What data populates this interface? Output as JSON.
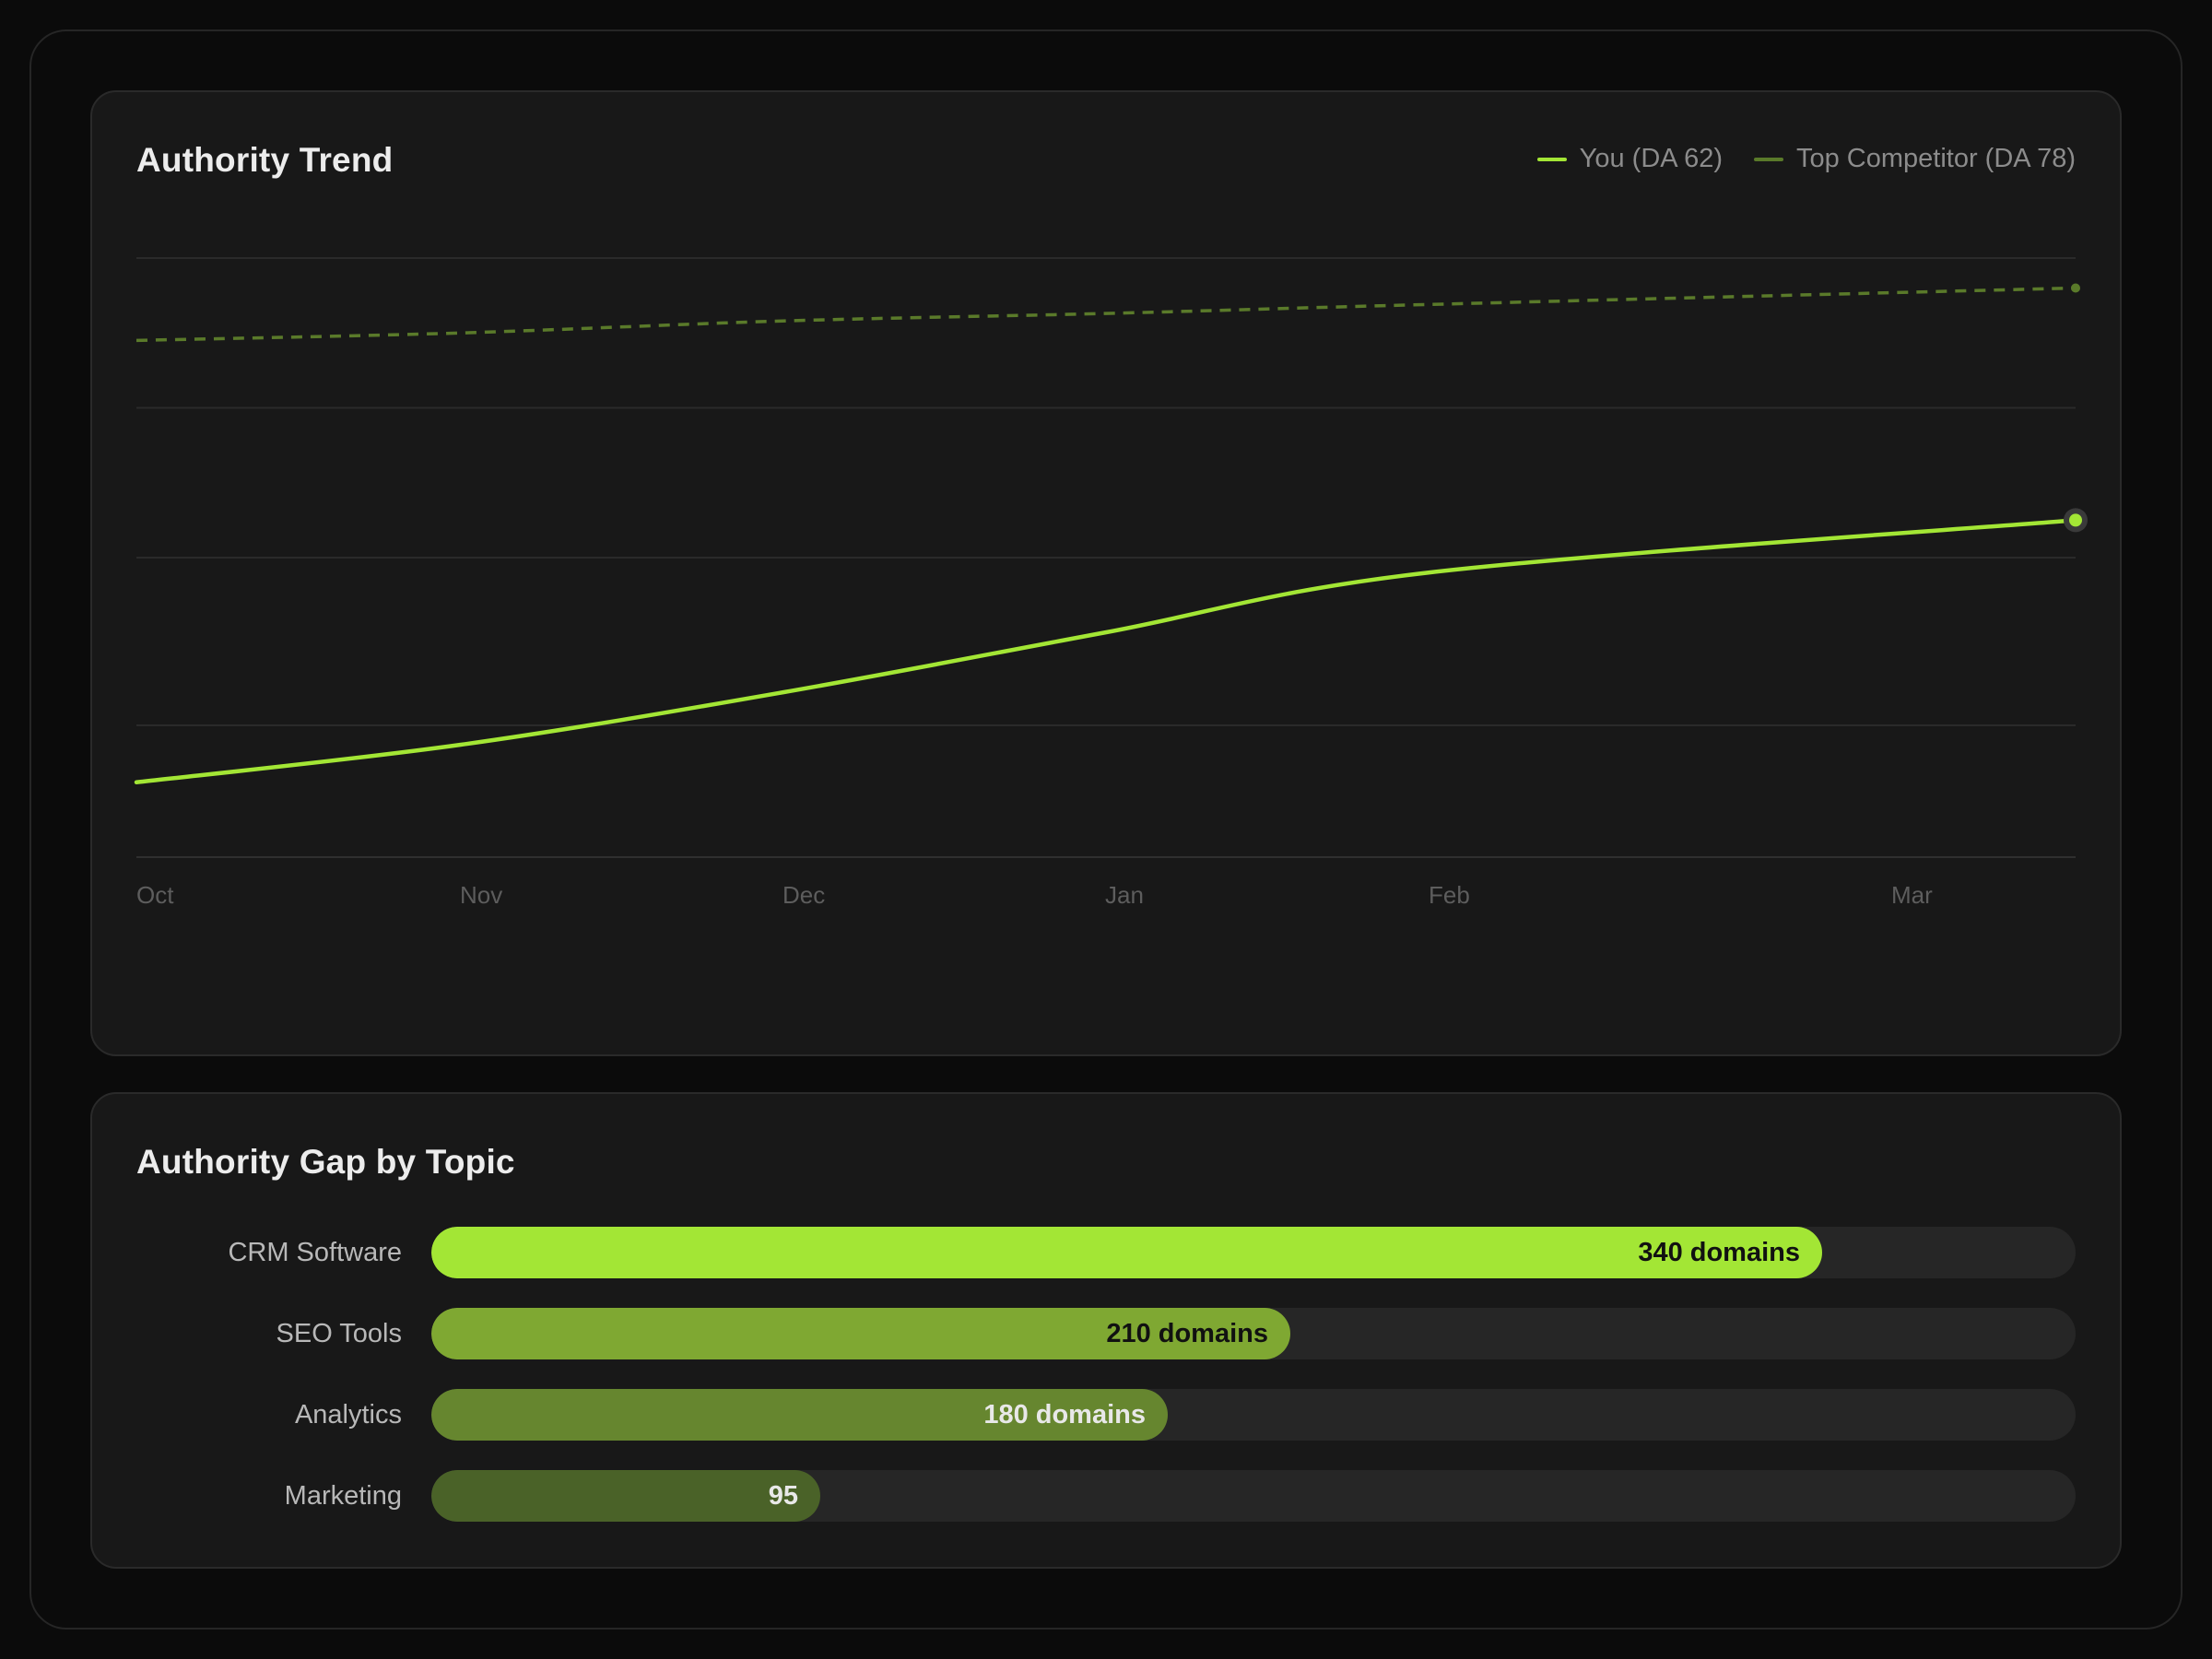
{
  "trend": {
    "title": "Authority Trend",
    "legend": [
      {
        "label": "You (DA 62)",
        "color": "#a3e635"
      },
      {
        "label": "Top Competitor (DA 78)",
        "color": "#5a7a2a"
      }
    ]
  },
  "gap": {
    "title": "Authority Gap by Topic"
  },
  "chart_data": [
    {
      "type": "line",
      "title": "Authority Trend",
      "x": [
        "Oct",
        "Nov",
        "Dec",
        "Jan",
        "Feb",
        "Mar"
      ],
      "x_ticks_shown": [
        "Oct",
        "Nov",
        "Dec",
        "Jan",
        "Feb",
        "Mar"
      ],
      "series": [
        {
          "name": "You (DA 62)",
          "values": [
            45,
            47.5,
            51,
            55,
            59,
            62.5
          ],
          "color": "#a3e635",
          "style": "solid"
        },
        {
          "name": "Top Competitor (DA 78)",
          "values": [
            74.5,
            75,
            75.8,
            76.3,
            76.9,
            78
          ],
          "color": "#5a7a2a",
          "style": "dashed"
        }
      ],
      "ylim": [
        40,
        80
      ],
      "grid": true,
      "legend_position": "top-right"
    },
    {
      "type": "bar",
      "orientation": "horizontal",
      "title": "Authority Gap by Topic",
      "categories": [
        "CRM Software",
        "SEO Tools",
        "Analytics",
        "Marketing"
      ],
      "values": [
        340,
        210,
        180,
        95
      ],
      "value_labels": [
        "340 domains",
        "210 domains",
        "180 domains",
        "95"
      ],
      "colors": [
        "#a3e635",
        "#7fa832",
        "#66862f",
        "#4a6228"
      ],
      "label_colors": [
        "#111111",
        "#111111",
        "#e8e8e8",
        "#e8e8e8"
      ],
      "xlim": [
        0,
        400
      ]
    }
  ]
}
